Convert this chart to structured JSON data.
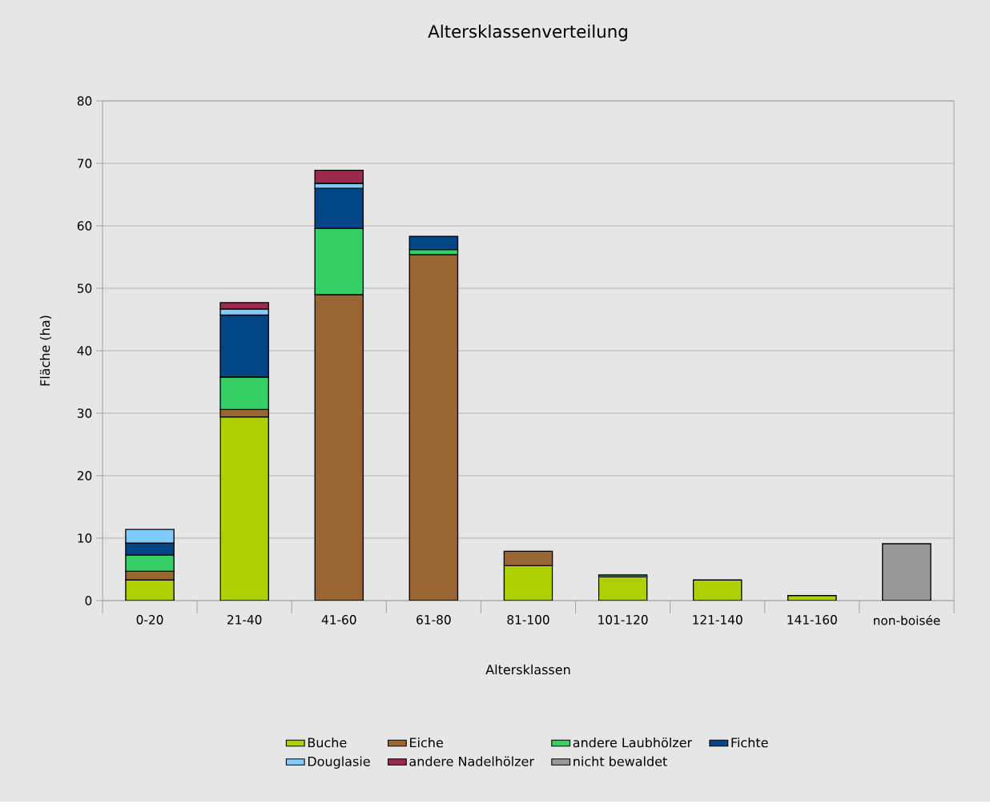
{
  "chart_data": {
    "type": "bar",
    "stacked": true,
    "title": "Altersklassenverteilung",
    "xlabel": "Altersklassen",
    "ylabel": "Fläche (ha)",
    "categories": [
      "0-20",
      "21-40",
      "41-60",
      "61-80",
      "81-100",
      "101-120",
      "121-140",
      "141-160",
      "non-boisée"
    ],
    "series": [
      {
        "name": "Buche",
        "color": "#aecf00",
        "values": [
          3.3,
          29.4,
          null,
          null,
          5.6,
          3.8,
          3.3,
          0.8,
          null
        ]
      },
      {
        "name": "Eiche",
        "color": "#996633",
        "values": [
          1.4,
          1.2,
          49.0,
          55.4,
          2.3,
          null,
          null,
          null,
          null
        ]
      },
      {
        "name": "andere Laubhölzer",
        "color": "#35cf66",
        "values": [
          2.6,
          5.2,
          10.6,
          0.8,
          null,
          0.3,
          null,
          null,
          null
        ]
      },
      {
        "name": "Fichte",
        "color": "#004586",
        "values": [
          1.9,
          9.9,
          6.4,
          2.1,
          null,
          null,
          null,
          null,
          null
        ]
      },
      {
        "name": "Douglasie",
        "color": "#83caff",
        "values": [
          2.2,
          1.0,
          0.8,
          null,
          null,
          null,
          null,
          null,
          null
        ]
      },
      {
        "name": "andere Nadelhölzer",
        "color": "#9c2a4d",
        "values": [
          null,
          1.0,
          2.1,
          null,
          null,
          null,
          null,
          null,
          null
        ]
      },
      {
        "name": "nicht bewaldet",
        "color": "#999999",
        "values": [
          null,
          null,
          null,
          null,
          null,
          null,
          null,
          null,
          9.1
        ]
      }
    ],
    "ylim": [
      0,
      80
    ],
    "yticks": [
      0,
      10,
      20,
      30,
      40,
      50,
      60,
      70,
      80
    ],
    "grid": "y",
    "legend": "bottom"
  }
}
